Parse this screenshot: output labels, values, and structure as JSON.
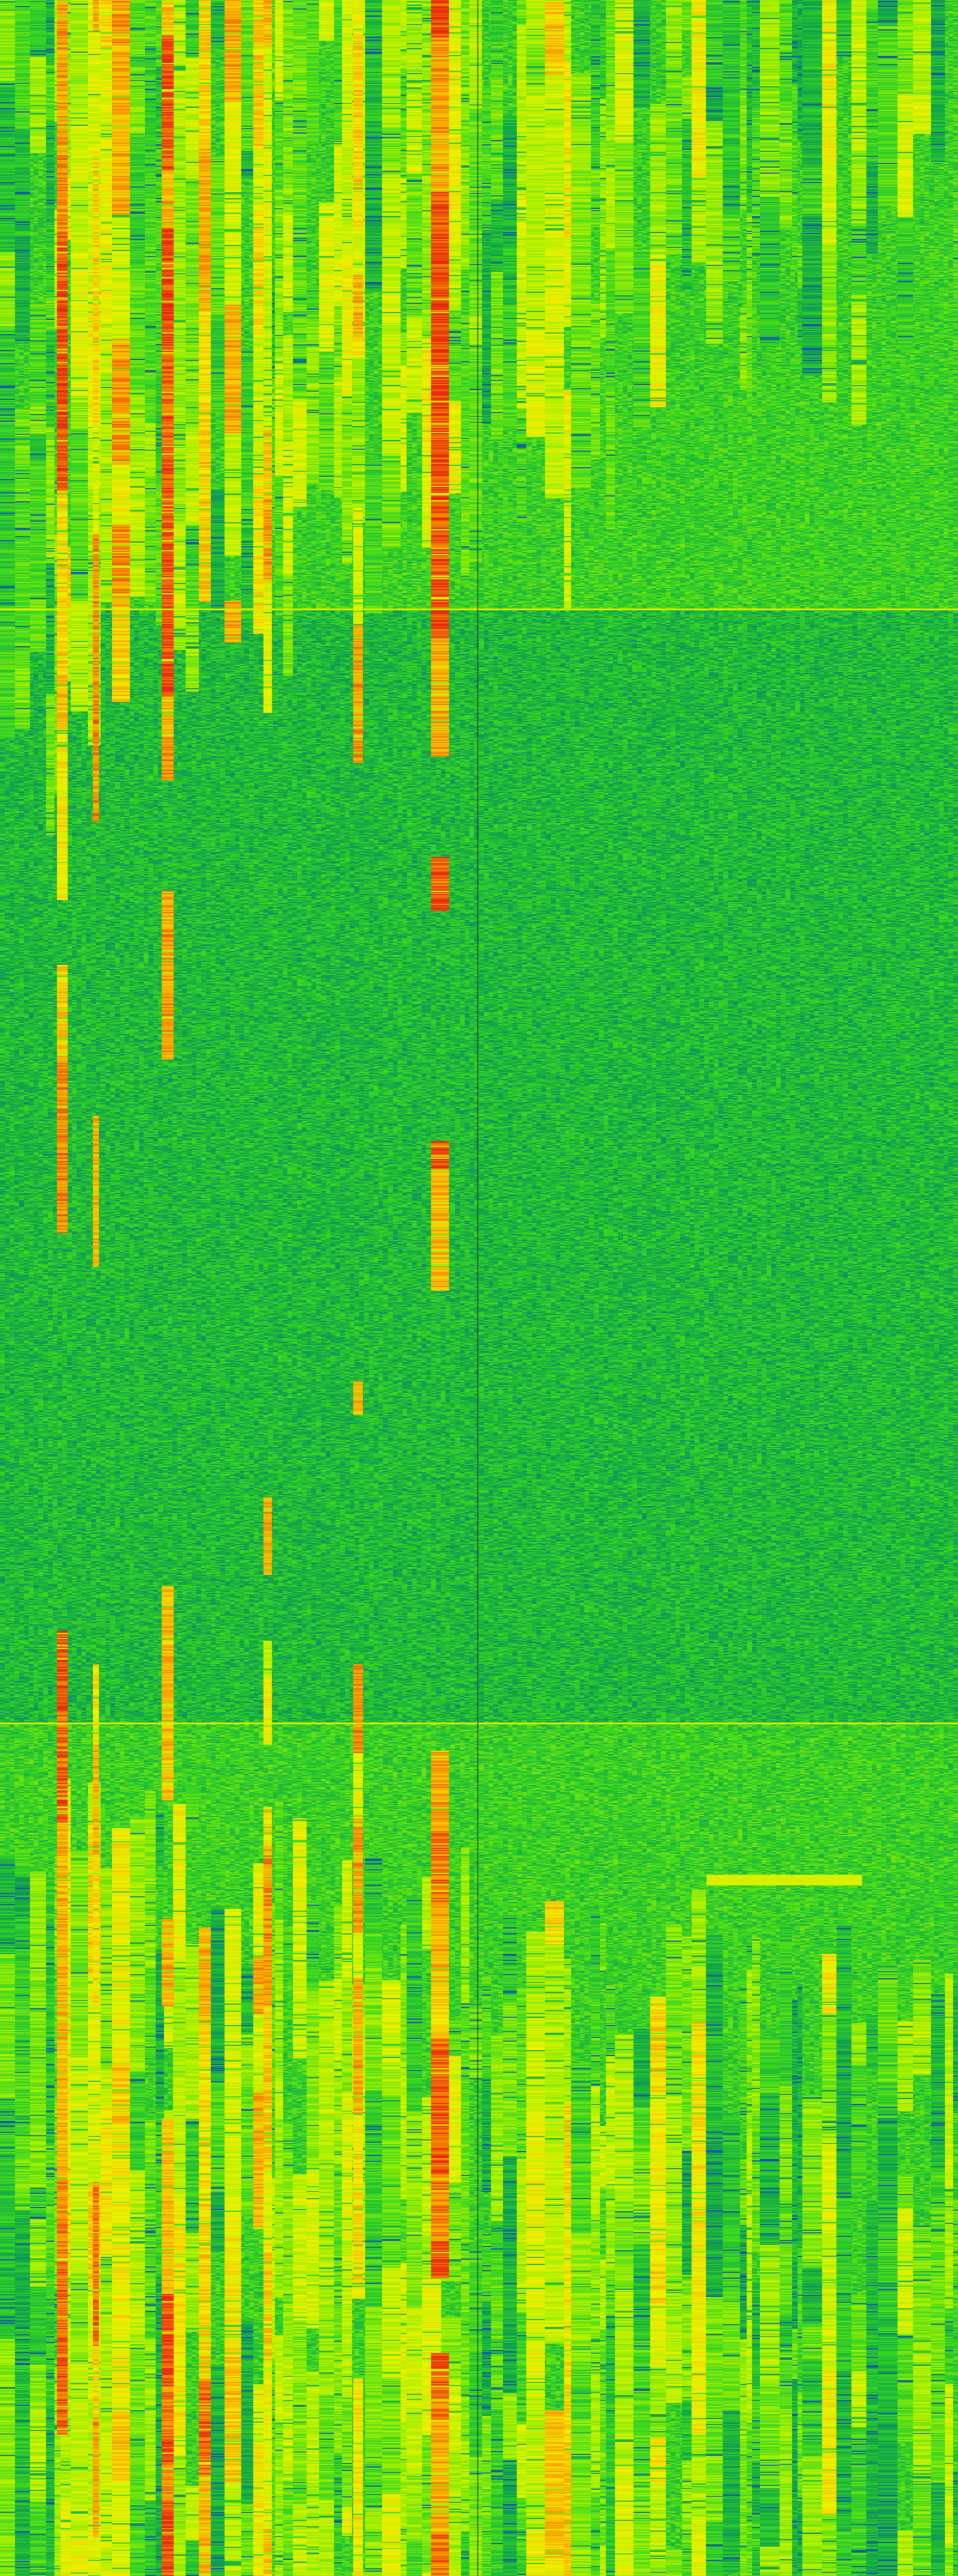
{
  "waterfall": {
    "colormap": [
      "#1258a8",
      "#12a848",
      "#3cd820",
      "#a8f000",
      "#f4f000",
      "#f8a000",
      "#e82810"
    ],
    "horizontal_line_color": "#d8f000"
  }
}
